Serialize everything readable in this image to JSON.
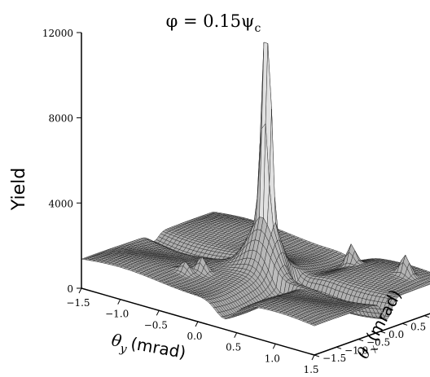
{
  "chart_data": {
    "type": "surface",
    "title": "φ = 0.15ψ",
    "title_subscript": "c",
    "zlabel": "Yield",
    "xlabel_symbol": "θ",
    "xlabel_subscript": "y",
    "xlabel_unit": "(mrad)",
    "ylabel_symbol": "θ",
    "ylabel_subscript": "x",
    "ylabel_unit": "(mrad)",
    "zlim": [
      0,
      12000
    ],
    "xlim": [
      -1.5,
      1.5
    ],
    "ylim": [
      -1.5,
      1.5
    ],
    "z_ticks": [
      "0",
      "4000",
      "8000",
      "12000"
    ],
    "x_ticks": [
      "−1.5",
      "−1.0",
      "−0.5",
      "0.0",
      "0.5",
      "1.0",
      "1.5"
    ],
    "y_ticks": [
      "−1.5",
      "−1.0",
      "−0.5",
      "0.0",
      "0.5",
      "1.0",
      "1.5"
    ],
    "grid": true,
    "peaks": [
      {
        "x": 0.0,
        "y": 0.0,
        "z": 12000
      },
      {
        "x": 0.05,
        "y": 0.0,
        "z": 12000
      },
      {
        "x": 0.5,
        "y": 1.1,
        "z": 2600
      },
      {
        "x": 1.2,
        "y": 1.1,
        "z": 2400
      },
      {
        "x": -0.4,
        "y": -0.7,
        "z": 2200
      },
      {
        "x": -0.5,
        "y": -0.9,
        "z": 1900
      }
    ],
    "background_yield": 1600,
    "surface_color": "#9a9a9a",
    "mesh_color": "#222222"
  }
}
